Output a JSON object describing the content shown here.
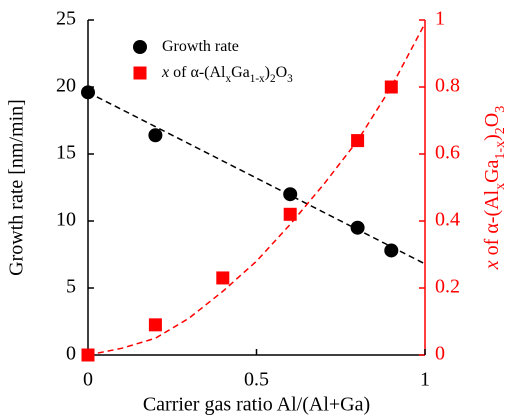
{
  "chart_data": {
    "type": "scatter",
    "xlabel": "Carrier gas ratio Al/(Al+Ga)",
    "ylabel": "Growth rate [nm/min]",
    "y2label": "x of α-(AlxGa1-x)2O3",
    "xlim": [
      0,
      1
    ],
    "xticks": [
      0,
      0.5,
      1
    ],
    "ylim": [
      0,
      25
    ],
    "yticks": [
      0,
      5,
      10,
      15,
      20,
      25
    ],
    "y2lim": [
      0,
      1
    ],
    "y2ticks": [
      0,
      0.2,
      0.4,
      0.6,
      0.8,
      1
    ],
    "legend": "upper left",
    "series": [
      {
        "name": "Growth rate",
        "color": "#000000",
        "marker": "circle",
        "x": [
          0,
          0.2,
          0.6,
          0.8,
          0.9
        ],
        "values": [
          19.6,
          16.4,
          12.0,
          9.5,
          7.8
        ]
      },
      {
        "name": "x of α-(AlxGa1-x)2O3",
        "color": "#ff0000",
        "marker": "square",
        "axis": "y2",
        "x": [
          0,
          0.2,
          0.4,
          0.6,
          0.8,
          0.9
        ],
        "values": [
          0,
          0.09,
          0.23,
          0.42,
          0.64,
          0.8
        ]
      }
    ],
    "trend_lines": [
      {
        "color": "#000000",
        "x": [
          0,
          1
        ],
        "values": [
          19.6,
          6.8
        ]
      },
      {
        "color": "#ff0000",
        "axis": "y2",
        "x": [
          0,
          0.1,
          0.2,
          0.3,
          0.4,
          0.5,
          0.6,
          0.7,
          0.8,
          0.9,
          1
        ],
        "values": [
          0,
          0.02,
          0.05,
          0.11,
          0.19,
          0.28,
          0.39,
          0.51,
          0.64,
          0.8,
          0.99
        ]
      }
    ]
  }
}
